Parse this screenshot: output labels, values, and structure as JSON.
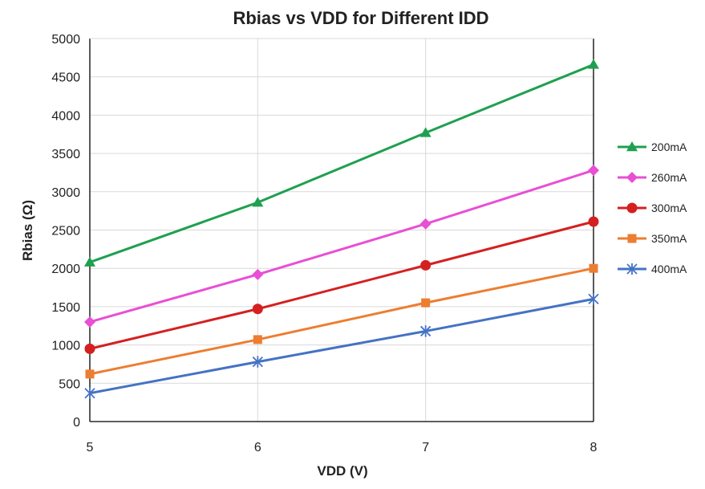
{
  "chart_data": {
    "type": "line",
    "title": "Rbias vs VDD for Different IDD",
    "xlabel": "VDD (V)",
    "ylabel": "Rbias (Ω)",
    "x": [
      5,
      6,
      7,
      8
    ],
    "xlim": [
      5,
      8
    ],
    "ylim": [
      0,
      5000
    ],
    "x_ticks": [
      "5",
      "6",
      "7",
      "8"
    ],
    "y_ticks": [
      "0",
      "500",
      "1000",
      "1500",
      "2000",
      "2500",
      "3000",
      "3500",
      "4000",
      "4500",
      "5000"
    ],
    "grid": true,
    "legend_position": "right",
    "series": [
      {
        "name": "200mA",
        "color": "#1fa050",
        "marker": "triangle",
        "values": [
          2080,
          2860,
          3770,
          4660
        ]
      },
      {
        "name": "260mA",
        "color": "#e84fd4",
        "marker": "diamond",
        "values": [
          1300,
          1920,
          2580,
          3280
        ]
      },
      {
        "name": "300mA",
        "color": "#d42020",
        "marker": "circle",
        "values": [
          950,
          1470,
          2040,
          2610
        ]
      },
      {
        "name": "350mA",
        "color": "#ed7d31",
        "marker": "square",
        "values": [
          620,
          1070,
          1550,
          2000
        ]
      },
      {
        "name": "400mA",
        "color": "#4472c4",
        "marker": "asterisk",
        "values": [
          370,
          780,
          1180,
          1600
        ]
      }
    ]
  }
}
